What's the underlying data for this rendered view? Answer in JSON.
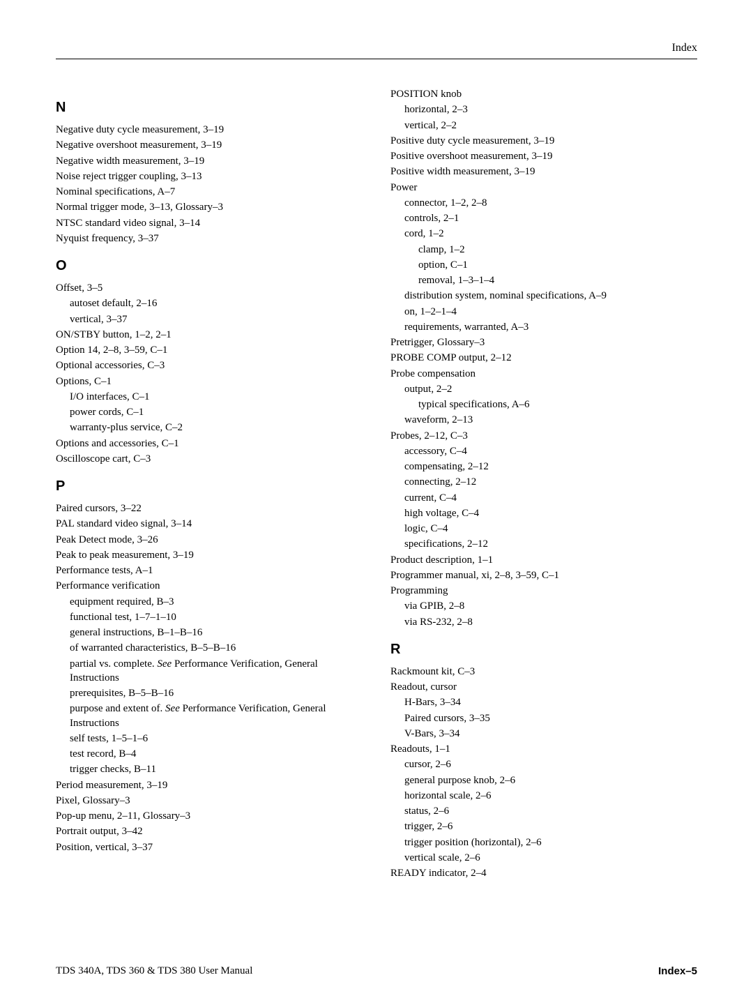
{
  "header": {
    "right": "Index"
  },
  "footer": {
    "left": "TDS 340A, TDS 360 & TDS 380 User Manual",
    "right": "Index–5"
  },
  "left": {
    "N": {
      "letter": "N",
      "items": [
        "Negative duty cycle measurement, 3–19",
        "Negative overshoot measurement, 3–19",
        "Negative width measurement, 3–19",
        "Noise reject trigger coupling, 3–13",
        "Nominal specifications, A–7",
        "Normal trigger mode, 3–13, Glossary–3",
        "NTSC standard video signal, 3–14",
        "Nyquist frequency, 3–37"
      ]
    },
    "O": {
      "letter": "O",
      "items": [
        "Offset, 3–5",
        "autoset default, 2–16",
        "vertical, 3–37",
        "ON/STBY button, 1–2, 2–1",
        "Option 14, 2–8, 3–59, C–1",
        "Optional accessories, C–3",
        "Options, C–1",
        "I/O interfaces, C–1",
        "power cords, C–1",
        "warranty-plus service, C–2",
        "Options and accessories, C–1",
        "Oscilloscope cart, C–3"
      ]
    },
    "P": {
      "letter": "P",
      "items": [
        "Paired cursors, 3–22",
        "PAL standard video signal, 3–14",
        "Peak Detect mode, 3–26",
        "Peak to peak measurement, 3–19",
        "Performance tests, A–1",
        "Performance verification",
        "equipment required, B–3",
        "functional test, 1–7–1–10",
        "general instructions, B–1–B–16",
        "of warranted characteristics, B–5–B–16",
        "partial vs. complete. ",
        " Performance Verification, General Instructions",
        "prerequisites, B–5–B–16",
        "purpose and extent of. ",
        " Performance Verification, General Instructions",
        "self tests, 1–5–1–6",
        "test record, B–4",
        "trigger checks, B–11",
        "Period measurement, 3–19",
        "Pixel, Glossary–3",
        "Pop-up menu, 2–11, Glossary–3",
        "Portrait output, 3–42",
        "Position, vertical, 3–37"
      ],
      "see": "See"
    }
  },
  "right": {
    "Pcont": {
      "items": [
        "POSITION knob",
        "horizontal, 2–3",
        "vertical, 2–2",
        "Positive duty cycle measurement, 3–19",
        "Positive overshoot measurement, 3–19",
        "Positive width measurement, 3–19",
        "Power",
        "connector, 1–2, 2–8",
        "controls, 2–1",
        "cord, 1–2",
        "clamp, 1–2",
        "option, C–1",
        "removal, 1–3–1–4",
        "distribution system, nominal specifications, A–9",
        "on, 1–2–1–4",
        "requirements, warranted, A–3",
        "Pretrigger, Glossary–3",
        "PROBE COMP output, 2–12",
        "Probe compensation",
        "output, 2–2",
        "typical specifications, A–6",
        "waveform, 2–13",
        "Probes, 2–12, C–3",
        "accessory, C–4",
        "compensating, 2–12",
        "connecting, 2–12",
        "current, C–4",
        "high voltage, C–4",
        "logic, C–4",
        "specifications, 2–12",
        "Product description, 1–1",
        "Programmer manual, xi, 2–8, 3–59, C–1",
        "Programming",
        "via GPIB, 2–8",
        "via RS-232, 2–8"
      ]
    },
    "R": {
      "letter": "R",
      "items": [
        "Rackmount kit, C–3",
        "Readout, cursor",
        "H-Bars, 3–34",
        "Paired cursors, 3–35",
        "V-Bars, 3–34",
        "Readouts, 1–1",
        "cursor, 2–6",
        "general purpose knob, 2–6",
        "horizontal scale, 2–6",
        "status, 2–6",
        "trigger, 2–6",
        "trigger position (horizontal), 2–6",
        "vertical scale, 2–6",
        "READY indicator, 2–4"
      ]
    }
  }
}
